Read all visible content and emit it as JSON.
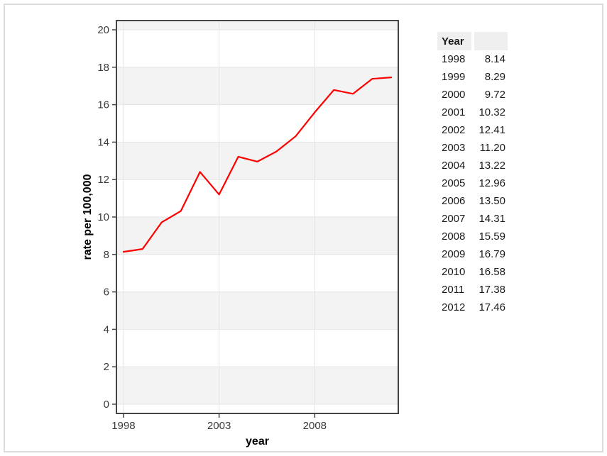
{
  "chart_data": {
    "type": "line",
    "title": "",
    "xlabel": "year",
    "ylabel": "rate per 100,000",
    "x": [
      1998,
      1999,
      2000,
      2001,
      2002,
      2003,
      2004,
      2005,
      2006,
      2007,
      2008,
      2009,
      2010,
      2011,
      2012
    ],
    "values": [
      8.14,
      8.29,
      9.72,
      10.32,
      12.41,
      11.2,
      13.22,
      12.96,
      13.5,
      14.31,
      15.59,
      16.79,
      16.58,
      17.38,
      17.46
    ],
    "x_ticks": [
      "1998",
      "2003",
      "2008"
    ],
    "x_tick_values": [
      1998,
      2003,
      2008
    ],
    "y_ticks": [
      0,
      2,
      4,
      6,
      8,
      10,
      12,
      14,
      16,
      18,
      20
    ],
    "xlim": [
      1997.67,
      2012.33
    ],
    "ylim": [
      -0.455,
      20.455
    ],
    "grid": true,
    "legend": "none",
    "line_color": "#ff0000",
    "band_color": "#f3f3f3",
    "grid_color": "#e4e4e4",
    "border_color": "#454545",
    "tick_label_color": "#3a3a3a",
    "title_color": "#000000"
  },
  "table": {
    "header": {
      "year": "Year",
      "value": ""
    },
    "rows": [
      {
        "year": "1998",
        "value": "8.14"
      },
      {
        "year": "1999",
        "value": "8.29"
      },
      {
        "year": "2000",
        "value": "9.72"
      },
      {
        "year": "2001",
        "value": "10.32"
      },
      {
        "year": "2002",
        "value": "12.41"
      },
      {
        "year": "2003",
        "value": "11.20"
      },
      {
        "year": "2004",
        "value": "13.22"
      },
      {
        "year": "2005",
        "value": "12.96"
      },
      {
        "year": "2006",
        "value": "13.50"
      },
      {
        "year": "2007",
        "value": "14.31"
      },
      {
        "year": "2008",
        "value": "15.59"
      },
      {
        "year": "2009",
        "value": "16.79"
      },
      {
        "year": "2010",
        "value": "16.58"
      },
      {
        "year": "2011",
        "value": "17.38"
      },
      {
        "year": "2012",
        "value": "17.46"
      }
    ]
  }
}
